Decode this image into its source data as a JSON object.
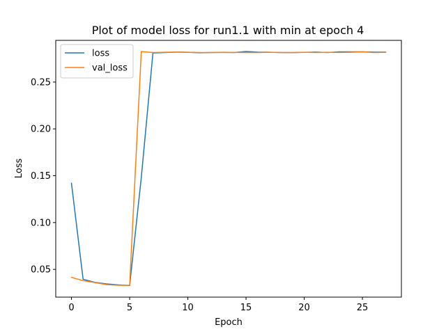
{
  "chart_data": {
    "type": "line",
    "title": "Plot of model loss for run1.1 with min at epoch 4",
    "xlabel": "Epoch",
    "ylabel": "Loss",
    "xlim": [
      -1.35,
      28.35
    ],
    "ylim": [
      0.0204,
      0.2945
    ],
    "xticks": [
      0,
      5,
      10,
      15,
      20,
      25
    ],
    "yticks": [
      0.05,
      0.1,
      0.15,
      0.2,
      0.25
    ],
    "ytick_labels": [
      "0.05",
      "0.10",
      "0.15",
      "0.20",
      "0.25"
    ],
    "legend_position": "upper-left",
    "grid": false,
    "x": [
      0,
      1,
      2,
      3,
      4,
      5,
      6,
      7,
      8,
      9,
      10,
      11,
      12,
      13,
      14,
      15,
      16,
      17,
      18,
      19,
      20,
      21,
      22,
      23,
      24,
      25,
      26,
      27
    ],
    "series": [
      {
        "name": "loss",
        "color": "#1f77b4",
        "values": [
          0.142,
          0.0395,
          0.0362,
          0.0345,
          0.0335,
          0.0328,
          0.148,
          0.281,
          0.2815,
          0.282,
          0.2818,
          0.2812,
          0.2815,
          0.2816,
          0.2815,
          0.2826,
          0.282,
          0.2818,
          0.2815,
          0.2814,
          0.2817,
          0.282,
          0.2815,
          0.2822,
          0.2822,
          0.2822,
          0.282,
          0.282
        ]
      },
      {
        "name": "val_loss",
        "color": "#ff7f0e",
        "values": [
          0.0415,
          0.038,
          0.036,
          0.0338,
          0.033,
          0.033,
          0.2825,
          0.2815,
          0.2818,
          0.282,
          0.2818,
          0.2815,
          0.2815,
          0.2818,
          0.2816,
          0.2815,
          0.2815,
          0.2818,
          0.2815,
          0.2815,
          0.2818,
          0.2815,
          0.2818,
          0.2816,
          0.2818,
          0.2822,
          0.2815,
          0.2818
        ]
      }
    ]
  }
}
